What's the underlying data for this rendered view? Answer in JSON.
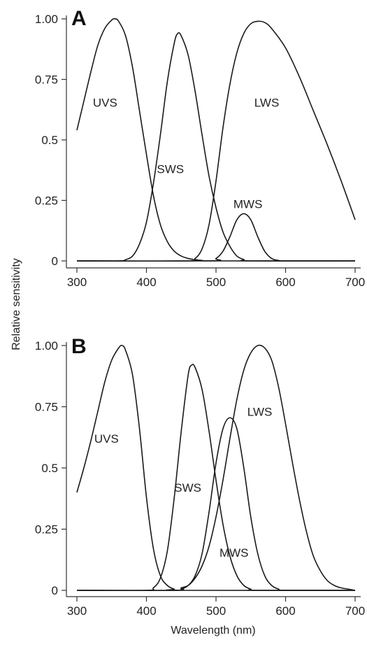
{
  "figure": {
    "ylabel": "Relative sensitivity",
    "xlabel": "Wavelength (nm)"
  },
  "chart_data": [
    {
      "type": "line",
      "panel": "A",
      "xlim": [
        300,
        700
      ],
      "ylim": [
        0,
        1
      ],
      "x_ticks": [
        300,
        400,
        500,
        600,
        700
      ],
      "y_ticks": [
        {
          "value": 0,
          "label": "0"
        },
        {
          "value": 0.25,
          "label": "0.25"
        },
        {
          "value": 0.5,
          "label": "0.5"
        },
        {
          "value": 0.75,
          "label": "0.75"
        },
        {
          "value": 1.0,
          "label": "1.00"
        }
      ],
      "series": [
        {
          "name": "UVS",
          "points": [
            [
              300,
              0.54
            ],
            [
              310,
              0.66
            ],
            [
              320,
              0.78
            ],
            [
              330,
              0.89
            ],
            [
              340,
              0.96
            ],
            [
              350,
              0.995
            ],
            [
              355,
              1.0
            ],
            [
              360,
              0.99
            ],
            [
              370,
              0.93
            ],
            [
              380,
              0.8
            ],
            [
              390,
              0.62
            ],
            [
              400,
              0.44
            ],
            [
              410,
              0.27
            ],
            [
              420,
              0.15
            ],
            [
              430,
              0.08
            ],
            [
              440,
              0.04
            ],
            [
              450,
              0.02
            ],
            [
              460,
              0.01
            ],
            [
              470,
              0.005
            ],
            [
              480,
              0.002
            ],
            [
              500,
              0.0
            ],
            [
              700,
              0.0
            ]
          ],
          "label_at": [
            323,
            0.655
          ]
        },
        {
          "name": "SWS",
          "points": [
            [
              300,
              0.0
            ],
            [
              360,
              0.0
            ],
            [
              370,
              0.005
            ],
            [
              380,
              0.02
            ],
            [
              390,
              0.07
            ],
            [
              400,
              0.16
            ],
            [
              410,
              0.32
            ],
            [
              420,
              0.52
            ],
            [
              430,
              0.74
            ],
            [
              440,
              0.9
            ],
            [
              445,
              0.94
            ],
            [
              450,
              0.93
            ],
            [
              460,
              0.85
            ],
            [
              470,
              0.7
            ],
            [
              480,
              0.52
            ],
            [
              490,
              0.35
            ],
            [
              500,
              0.22
            ],
            [
              510,
              0.12
            ],
            [
              520,
              0.06
            ],
            [
              530,
              0.02
            ],
            [
              540,
              0.006
            ],
            [
              550,
              0.0
            ],
            [
              700,
              0.0
            ]
          ],
          "label_at": [
            415,
            0.38
          ]
        },
        {
          "name": "LWS",
          "points": [
            [
              300,
              0.0
            ],
            [
              460,
              0.0
            ],
            [
              470,
              0.01
            ],
            [
              480,
              0.05
            ],
            [
              490,
              0.15
            ],
            [
              500,
              0.33
            ],
            [
              510,
              0.55
            ],
            [
              520,
              0.73
            ],
            [
              530,
              0.86
            ],
            [
              540,
              0.94
            ],
            [
              550,
              0.98
            ],
            [
              560,
              0.99
            ],
            [
              570,
              0.985
            ],
            [
              580,
              0.96
            ],
            [
              600,
              0.88
            ],
            [
              620,
              0.76
            ],
            [
              640,
              0.62
            ],
            [
              660,
              0.48
            ],
            [
              680,
              0.33
            ],
            [
              700,
              0.17
            ]
          ],
          "label_at": [
            555,
            0.655
          ]
        },
        {
          "name": "MWS",
          "points": [
            [
              300,
              0.0
            ],
            [
              490,
              0.0
            ],
            [
              500,
              0.01
            ],
            [
              510,
              0.04
            ],
            [
              520,
              0.1
            ],
            [
              530,
              0.17
            ],
            [
              540,
              0.195
            ],
            [
              550,
              0.17
            ],
            [
              560,
              0.1
            ],
            [
              570,
              0.04
            ],
            [
              580,
              0.01
            ],
            [
              590,
              0.002
            ],
            [
              600,
              0.0
            ],
            [
              700,
              0.0
            ]
          ],
          "label_at": [
            525,
            0.235
          ]
        }
      ]
    },
    {
      "type": "line",
      "panel": "B",
      "xlim": [
        300,
        700
      ],
      "ylim": [
        0,
        1
      ],
      "x_ticks": [
        300,
        400,
        500,
        600,
        700
      ],
      "y_ticks": [
        {
          "value": 0,
          "label": "0"
        },
        {
          "value": 0.25,
          "label": "0.25"
        },
        {
          "value": 0.5,
          "label": "0.5"
        },
        {
          "value": 0.75,
          "label": "0.75"
        },
        {
          "value": 1.0,
          "label": "1.00"
        }
      ],
      "series": [
        {
          "name": "UVS",
          "points": [
            [
              300,
              0.4
            ],
            [
              310,
              0.5
            ],
            [
              320,
              0.61
            ],
            [
              330,
              0.73
            ],
            [
              340,
              0.85
            ],
            [
              350,
              0.94
            ],
            [
              360,
              0.99
            ],
            [
              365,
              1.0
            ],
            [
              370,
              0.98
            ],
            [
              380,
              0.88
            ],
            [
              390,
              0.66
            ],
            [
              400,
              0.38
            ],
            [
              410,
              0.17
            ],
            [
              420,
              0.06
            ],
            [
              430,
              0.02
            ],
            [
              440,
              0.005
            ],
            [
              450,
              0.0
            ],
            [
              700,
              0.0
            ]
          ],
          "label_at": [
            325,
            0.62
          ]
        },
        {
          "name": "SWS",
          "points": [
            [
              300,
              0.0
            ],
            [
              400,
              0.0
            ],
            [
              410,
              0.01
            ],
            [
              420,
              0.05
            ],
            [
              430,
              0.16
            ],
            [
              440,
              0.38
            ],
            [
              450,
              0.65
            ],
            [
              460,
              0.88
            ],
            [
              465,
              0.92
            ],
            [
              470,
              0.91
            ],
            [
              480,
              0.82
            ],
            [
              490,
              0.65
            ],
            [
              500,
              0.45
            ],
            [
              510,
              0.27
            ],
            [
              520,
              0.14
            ],
            [
              530,
              0.06
            ],
            [
              540,
              0.02
            ],
            [
              550,
              0.005
            ],
            [
              560,
              0.0
            ],
            [
              700,
              0.0
            ]
          ],
          "label_at": [
            440,
            0.42
          ]
        },
        {
          "name": "MWS",
          "points": [
            [
              300,
              0.0
            ],
            [
              440,
              0.0
            ],
            [
              450,
              0.005
            ],
            [
              460,
              0.02
            ],
            [
              470,
              0.06
            ],
            [
              480,
              0.15
            ],
            [
              490,
              0.32
            ],
            [
              500,
              0.52
            ],
            [
              510,
              0.66
            ],
            [
              520,
              0.705
            ],
            [
              530,
              0.66
            ],
            [
              540,
              0.5
            ],
            [
              550,
              0.3
            ],
            [
              560,
              0.15
            ],
            [
              570,
              0.06
            ],
            [
              580,
              0.02
            ],
            [
              590,
              0.005
            ],
            [
              600,
              0.0
            ],
            [
              700,
              0.0
            ]
          ],
          "label_at": [
            505,
            0.155
          ]
        },
        {
          "name": "LWS",
          "points": [
            [
              300,
              0.0
            ],
            [
              440,
              0.0
            ],
            [
              450,
              0.01
            ],
            [
              460,
              0.02
            ],
            [
              470,
              0.05
            ],
            [
              480,
              0.1
            ],
            [
              490,
              0.18
            ],
            [
              500,
              0.3
            ],
            [
              510,
              0.45
            ],
            [
              520,
              0.62
            ],
            [
              530,
              0.78
            ],
            [
              540,
              0.9
            ],
            [
              550,
              0.97
            ],
            [
              560,
              1.0
            ],
            [
              570,
              0.99
            ],
            [
              580,
              0.94
            ],
            [
              590,
              0.83
            ],
            [
              600,
              0.68
            ],
            [
              610,
              0.52
            ],
            [
              620,
              0.37
            ],
            [
              630,
              0.24
            ],
            [
              640,
              0.14
            ],
            [
              650,
              0.08
            ],
            [
              660,
              0.04
            ],
            [
              670,
              0.02
            ],
            [
              680,
              0.01
            ],
            [
              690,
              0.005
            ],
            [
              700,
              0.0
            ]
          ],
          "label_at": [
            545,
            0.73
          ]
        }
      ]
    }
  ]
}
